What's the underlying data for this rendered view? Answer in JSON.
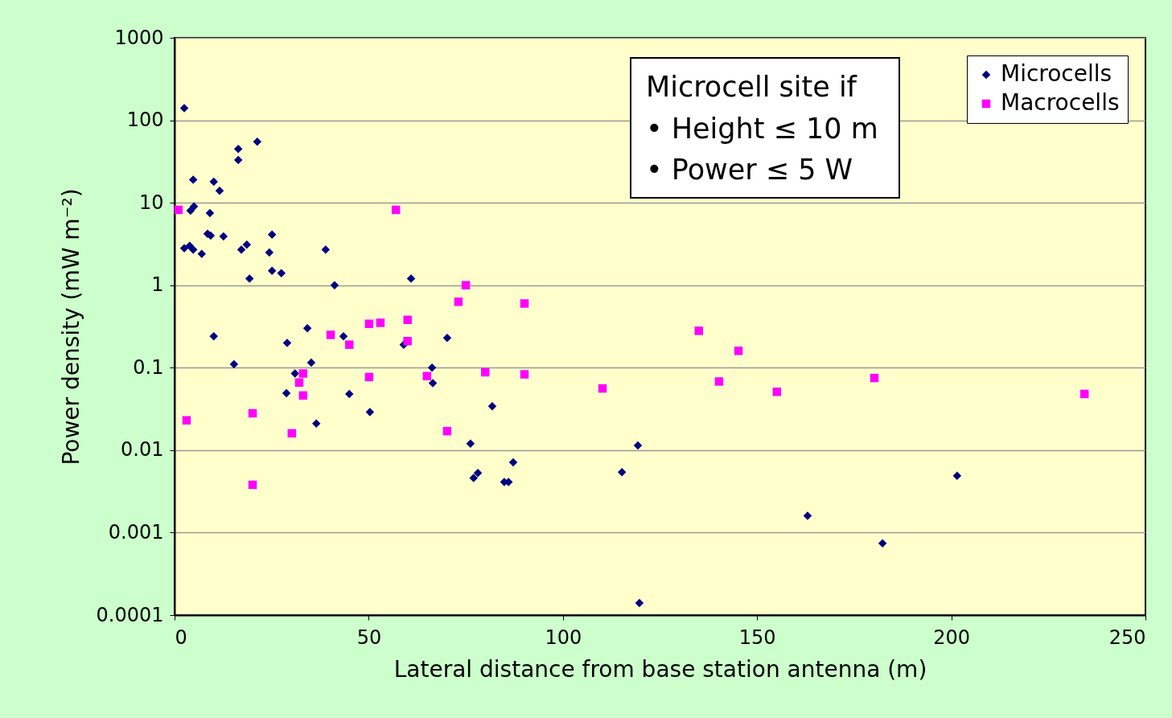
{
  "chart_data": {
    "type": "scatter",
    "xlabel": "Lateral distance from base station antenna (m)",
    "ylabel": "Power density (mW m⁻²)",
    "annotations": [
      "Microcell site if",
      "• Height ≤ 10 m",
      "• Power ≤ 5 W"
    ],
    "xlim": [
      0,
      250
    ],
    "xticks": [
      0,
      50,
      100,
      150,
      200,
      250
    ],
    "ylim": [
      0.0001,
      1000
    ],
    "yticks": [
      0.0001,
      0.001,
      0.01,
      0.1,
      1,
      10,
      100,
      1000
    ],
    "log": "y",
    "grid": "y",
    "legend": "top right",
    "series": [
      {
        "name": "Microcells",
        "color": "#000080",
        "marker": "diamond",
        "x": [
          2.5,
          16.4,
          16.4,
          21.3,
          4.8,
          10.1,
          11.6,
          4.1,
          5,
          9.1,
          2.5,
          3.9,
          4.8,
          7,
          8.5,
          9.3,
          12.6,
          18.6,
          17.2,
          25.1,
          24.4,
          38.9,
          25.1,
          27.5,
          19.3,
          41.2,
          60.9,
          10.1,
          34.2,
          43.5,
          70.2,
          29,
          59,
          15.3,
          35.2,
          66.3,
          31,
          66.5,
          28.8,
          45,
          50.3,
          81.8,
          36.5,
          76.2,
          119.3,
          115.2,
          87.2,
          78.1,
          77,
          84.9,
          86,
          201.5,
          163,
          182.3,
          119.7
        ],
        "values": [
          140,
          45,
          33,
          55,
          19,
          18,
          14,
          8,
          9,
          7.5,
          2.8,
          3.0,
          2.7,
          2.4,
          4.2,
          4,
          3.9,
          3.1,
          2.7,
          4.1,
          2.5,
          2.7,
          1.5,
          1.4,
          1.2,
          1,
          1.2,
          0.24,
          0.3,
          0.24,
          0.23,
          0.2,
          0.19,
          0.11,
          0.115,
          0.1,
          0.085,
          0.065,
          0.049,
          0.048,
          0.029,
          0.034,
          0.021,
          0.012,
          0.0114,
          0.0054,
          0.0071,
          0.0053,
          0.0046,
          0.0041,
          0.0041,
          0.0049,
          0.0016,
          0.00074,
          0.00014
        ]
      },
      {
        "name": "Macrocells",
        "color": "#ff00ff",
        "marker": "square",
        "x": [
          1,
          57,
          75,
          73.1,
          90.1,
          60,
          53,
          50.1,
          40.2,
          60,
          45,
          135,
          145.2,
          80,
          90.1,
          65,
          50.1,
          33.1,
          32.1,
          33.1,
          140.2,
          180.2,
          110.2,
          155.1,
          234.3,
          3.1,
          20.1,
          30.2,
          70.2,
          20.1
        ],
        "values": [
          8.2,
          8.2,
          1,
          0.63,
          0.6,
          0.38,
          0.35,
          0.34,
          0.25,
          0.21,
          0.19,
          0.28,
          0.16,
          0.088,
          0.083,
          0.079,
          0.077,
          0.085,
          0.066,
          0.046,
          0.068,
          0.075,
          0.056,
          0.051,
          0.048,
          0.023,
          0.028,
          0.016,
          0.017,
          0.0038
        ]
      }
    ]
  }
}
